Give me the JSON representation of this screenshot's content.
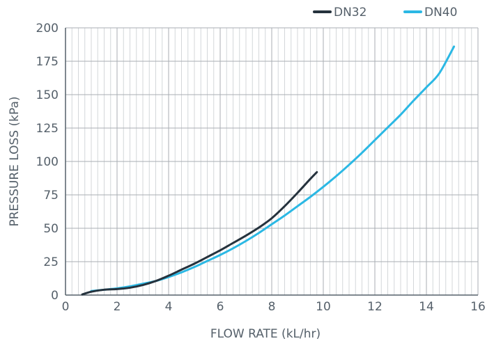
{
  "chart_data": {
    "type": "line",
    "title": "",
    "xlabel": "FLOW RATE (kL/hr)",
    "ylabel": "PRESSURE LOSS (kPa)",
    "xlim": [
      0,
      16
    ],
    "ylim": [
      0,
      200
    ],
    "x_ticks": [
      "0",
      "2",
      "4",
      "6",
      "8",
      "10",
      "12",
      "14",
      "16"
    ],
    "y_ticks": [
      "0",
      "25",
      "50",
      "75",
      "100",
      "125",
      "150",
      "175",
      "200"
    ],
    "grid": true,
    "legend_position": "top-right",
    "series": [
      {
        "name": "DN32",
        "color": "#25323d",
        "points": [
          [
            0.65,
            0.5
          ],
          [
            1.0,
            2.5
          ],
          [
            1.5,
            4.0
          ],
          [
            2.0,
            4.5
          ],
          [
            2.5,
            5.5
          ],
          [
            3.0,
            7.5
          ],
          [
            3.5,
            10.5
          ],
          [
            4.0,
            14.5
          ],
          [
            4.5,
            19.0
          ],
          [
            5.0,
            23.5
          ],
          [
            5.5,
            28.5
          ],
          [
            6.0,
            33.5
          ],
          [
            6.5,
            39.0
          ],
          [
            7.0,
            44.5
          ],
          [
            7.5,
            50.5
          ],
          [
            8.0,
            57.5
          ],
          [
            8.5,
            66.5
          ],
          [
            9.0,
            76.5
          ],
          [
            9.5,
            87.0
          ],
          [
            9.75,
            92.0
          ]
        ]
      },
      {
        "name": "DN40",
        "color": "#2bb8e4",
        "points": [
          [
            1.0,
            3.0
          ],
          [
            1.5,
            4.0
          ],
          [
            2.0,
            5.0
          ],
          [
            2.5,
            6.5
          ],
          [
            3.0,
            8.5
          ],
          [
            3.5,
            10.5
          ],
          [
            4.0,
            13.5
          ],
          [
            4.5,
            17.0
          ],
          [
            5.0,
            21.0
          ],
          [
            5.5,
            25.5
          ],
          [
            6.0,
            30.0
          ],
          [
            6.5,
            35.0
          ],
          [
            7.0,
            40.5
          ],
          [
            7.5,
            46.5
          ],
          [
            8.0,
            53.0
          ],
          [
            8.5,
            59.5
          ],
          [
            9.0,
            66.5
          ],
          [
            9.5,
            73.5
          ],
          [
            10.0,
            81.0
          ],
          [
            10.5,
            89.0
          ],
          [
            11.0,
            97.5
          ],
          [
            11.5,
            106.5
          ],
          [
            12.0,
            116.0
          ],
          [
            12.5,
            125.5
          ],
          [
            13.0,
            135.0
          ],
          [
            13.5,
            145.5
          ],
          [
            14.0,
            155.5
          ],
          [
            14.5,
            166.0
          ],
          [
            15.07,
            186.0
          ]
        ]
      }
    ]
  }
}
